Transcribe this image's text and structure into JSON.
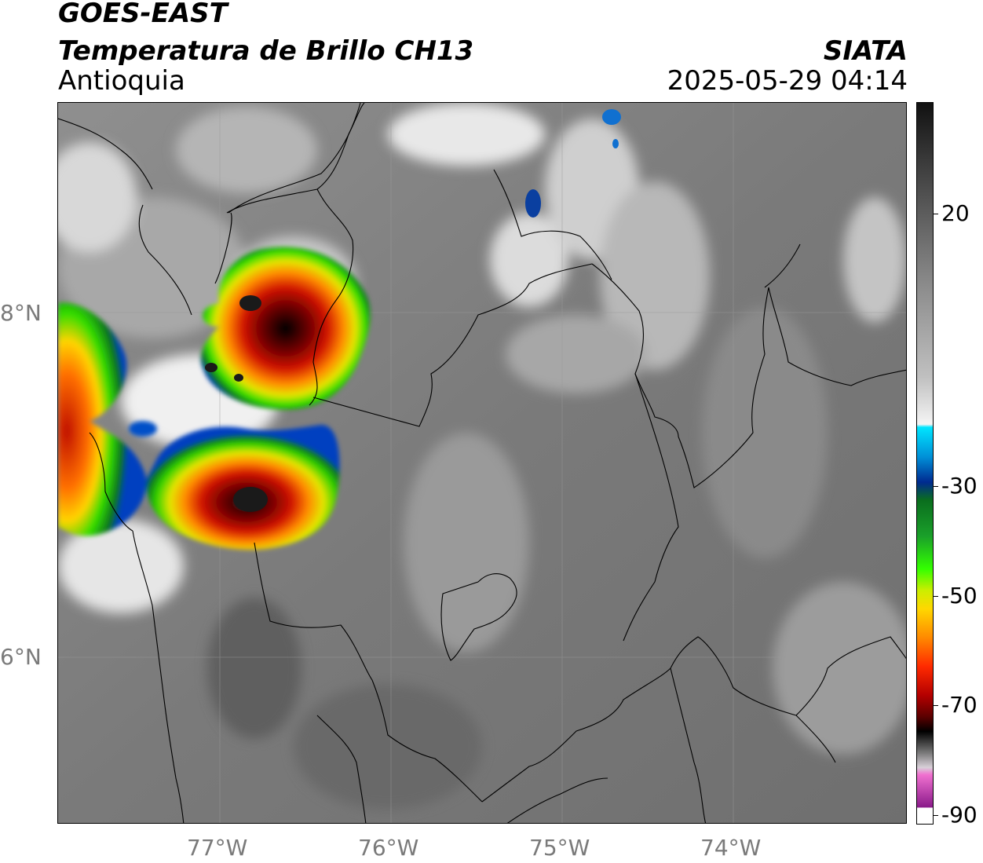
{
  "header": {
    "satellite": "GOES-EAST",
    "product": "Temperatura de Brillo CH13",
    "region": "Antioquia",
    "agency": "SIATA",
    "datetime": "2025-05-29 04:14"
  },
  "map": {
    "lon_labels": [
      "77°W",
      "76°W",
      "75°W",
      "74°W"
    ],
    "lat_labels": [
      "8°N",
      "6°N"
    ],
    "basemap": "infrared brightness temperature over Colombia (Antioquia) with department borders and coastline",
    "gridlines": true
  },
  "colorbar": {
    "tick_labels": [
      "20",
      "-30",
      "-50",
      "-70",
      "-90"
    ],
    "range": [
      -90,
      30
    ],
    "unit_hidden": true,
    "colors": {
      "warm_gray_top": "#1a1a1a",
      "mid_gray": "#b0b0b0",
      "white": "#f2f2f2",
      "cyan": "#00e5ff",
      "blue": "#003fa0",
      "green": "#1aa02a",
      "bright_green": "#33ff00",
      "yellow": "#ffe600",
      "orange": "#ff8a00",
      "red": "#e01a00",
      "dark_red": "#6e0000",
      "black": "#000000",
      "pink": "#e06ac6",
      "purple": "#8a1a8a"
    }
  }
}
